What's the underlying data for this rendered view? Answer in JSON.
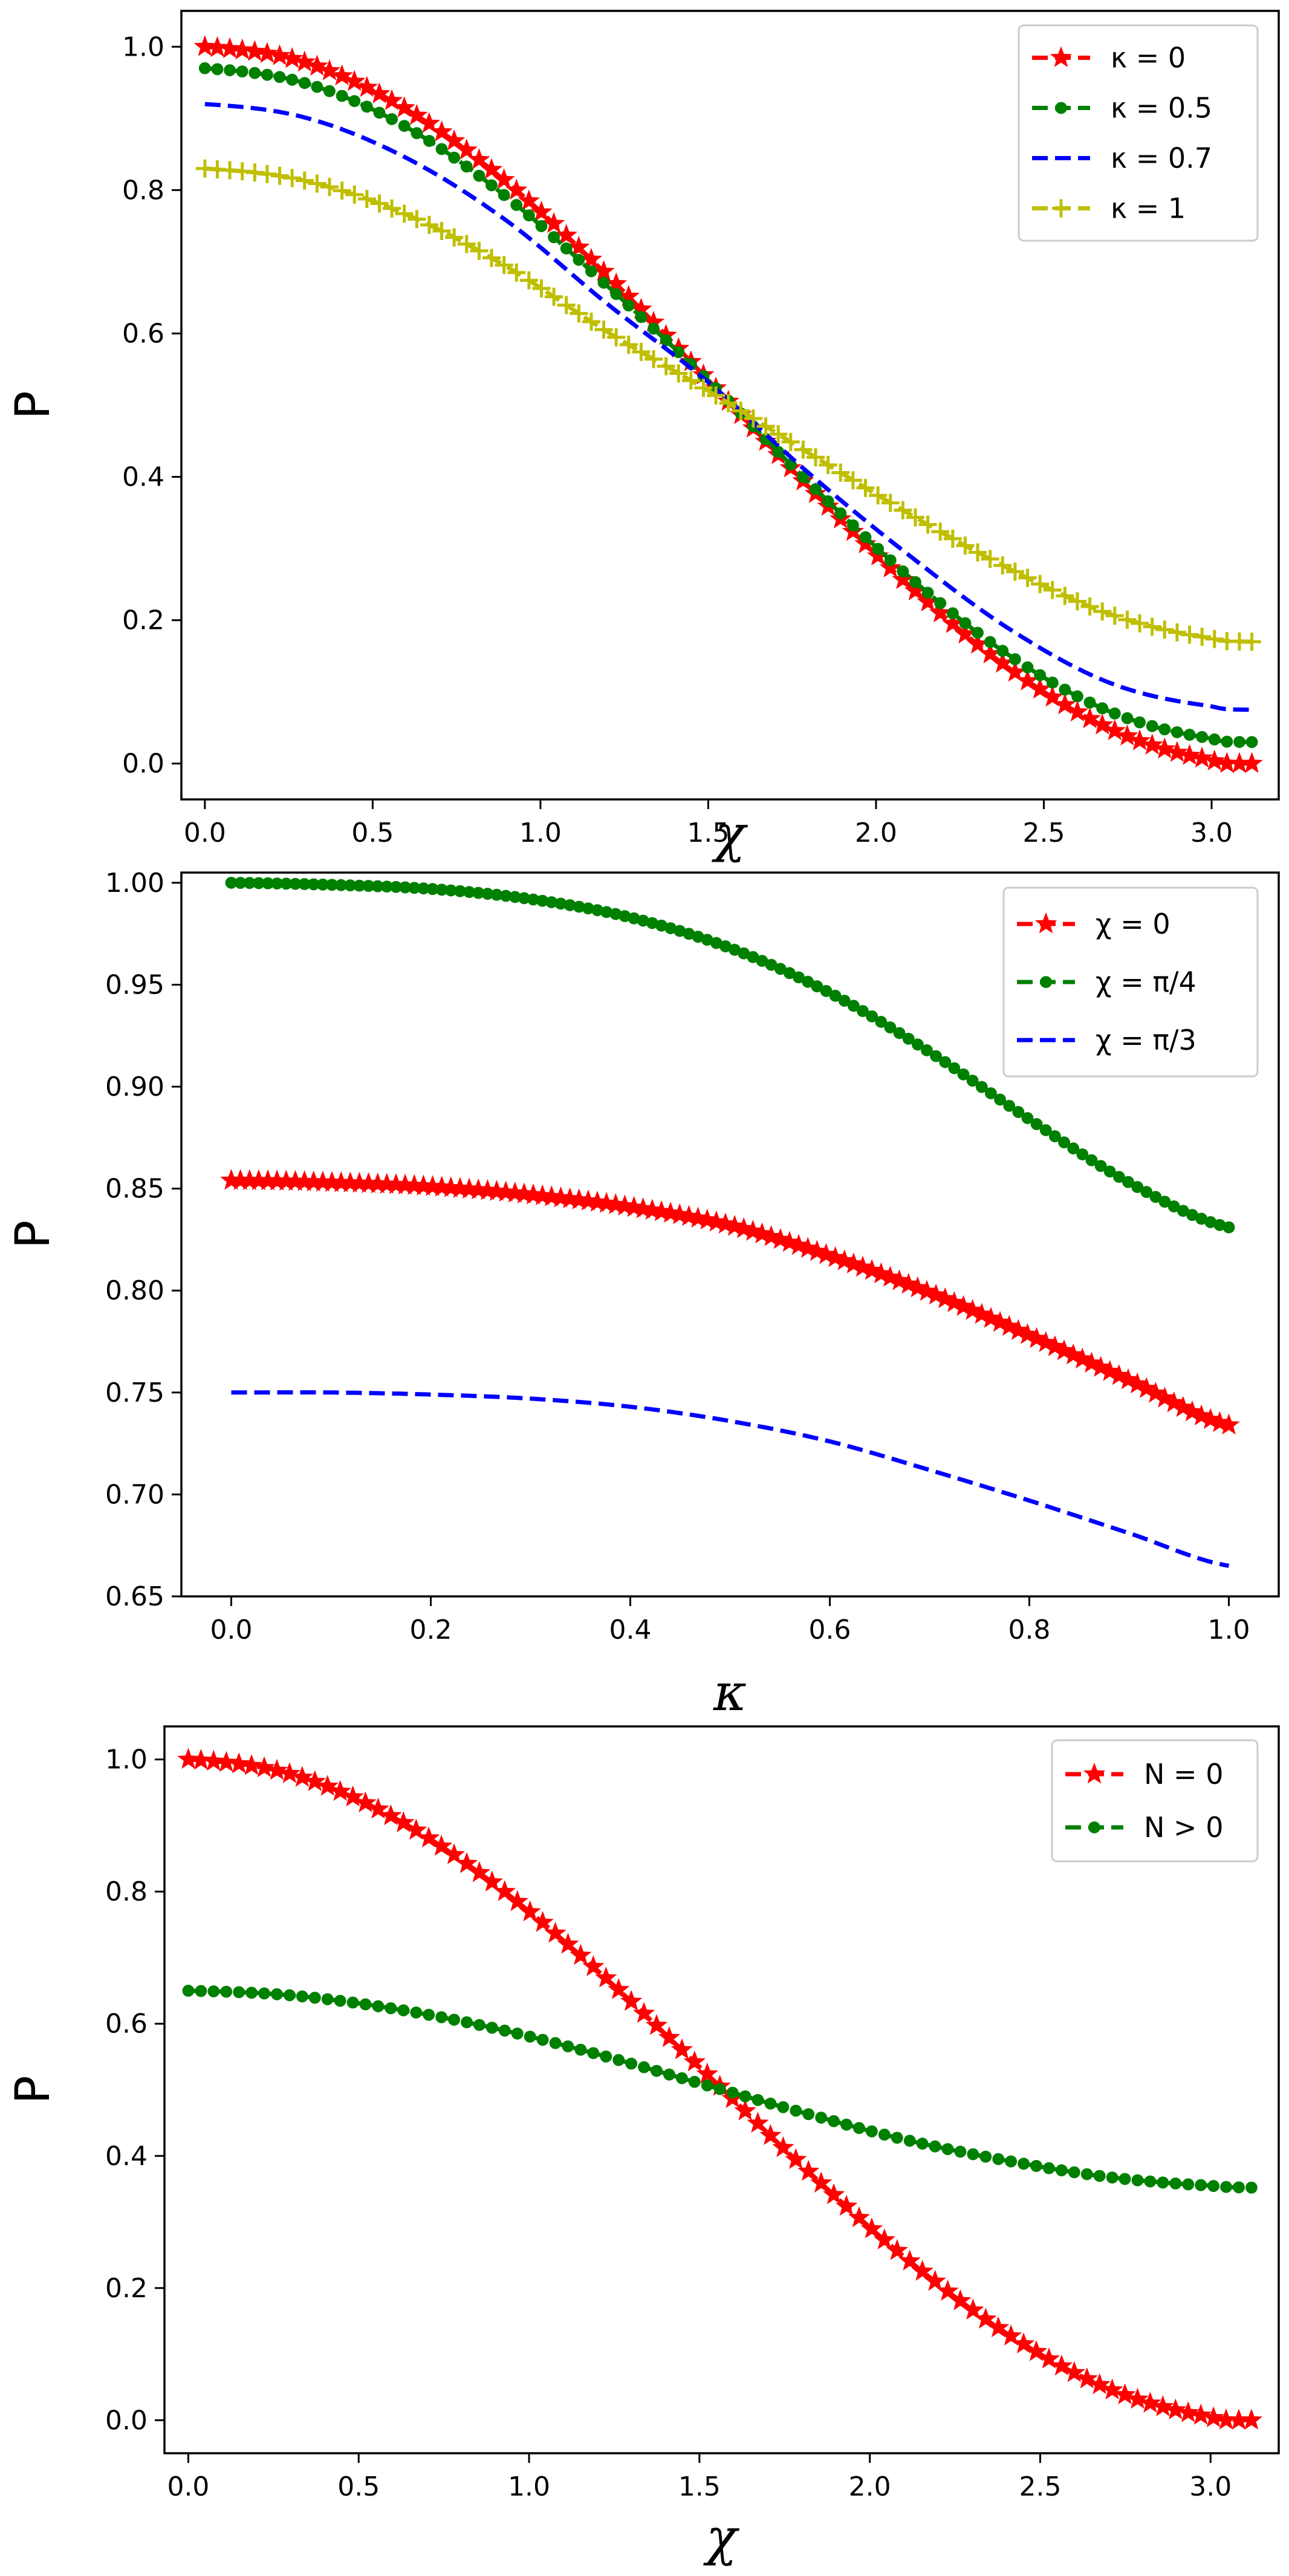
{
  "chart_data": [
    {
      "type": "line",
      "xlabel": "χ",
      "ylabel": "P",
      "xlim": [
        -0.07,
        3.2
      ],
      "ylim": [
        -0.05,
        1.05
      ],
      "xticks": [
        0.0,
        0.5,
        1.0,
        1.5,
        2.0,
        2.5,
        3.0
      ],
      "yticks": [
        0.0,
        0.2,
        0.4,
        0.6,
        0.8,
        1.0
      ],
      "xtick_labels": [
        "0.0",
        "0.5",
        "1.0",
        "1.5",
        "2.0",
        "2.5",
        "3.0"
      ],
      "ytick_labels": [
        "0.0",
        "0.2",
        "0.4",
        "0.6",
        "0.8",
        "1.0"
      ],
      "grid": false,
      "legend_position": "top-right",
      "x": [
        0.0,
        0.3,
        0.6,
        0.9,
        1.2,
        1.5,
        1.8,
        2.1,
        2.4,
        2.7,
        3.0,
        3.12
      ],
      "series": [
        {
          "name": "κ = 0",
          "color": "#ff0000",
          "marker": "star",
          "line": "dashed",
          "values": [
            1.0,
            0.978,
            0.913,
            0.811,
            0.681,
            0.535,
            0.386,
            0.248,
            0.132,
            0.048,
            0.005,
            0.0
          ]
        },
        {
          "name": "κ = 0.5",
          "color": "#008000",
          "marker": "dot",
          "line": "dashed",
          "values": [
            0.97,
            0.949,
            0.888,
            0.79,
            0.666,
            0.534,
            0.392,
            0.26,
            0.15,
            0.072,
            0.035,
            0.03
          ]
        },
        {
          "name": "κ = 0.7",
          "color": "#0000ff",
          "marker": "none",
          "line": "dashed",
          "values": [
            0.92,
            0.901,
            0.845,
            0.757,
            0.641,
            0.532,
            0.405,
            0.29,
            0.187,
            0.112,
            0.08,
            0.075
          ]
        },
        {
          "name": "κ = 1",
          "color": "#bfbf00",
          "marker": "plus",
          "line": "dashed",
          "values": [
            0.83,
            0.813,
            0.766,
            0.693,
            0.602,
            0.52,
            0.433,
            0.348,
            0.271,
            0.208,
            0.175,
            0.17
          ]
        }
      ]
    },
    {
      "type": "line",
      "xlabel": "κ",
      "ylabel": "P",
      "xlim": [
        -0.05,
        1.05
      ],
      "ylim": [
        0.65,
        1.005
      ],
      "xticks": [
        0.0,
        0.2,
        0.4,
        0.6,
        0.8,
        1.0
      ],
      "yticks": [
        0.65,
        0.7,
        0.75,
        0.8,
        0.85,
        0.9,
        0.95,
        1.0
      ],
      "xtick_labels": [
        "0.0",
        "0.2",
        "0.4",
        "0.6",
        "0.8",
        "1.0"
      ],
      "ytick_labels": [
        "0.65",
        "0.70",
        "0.75",
        "0.80",
        "0.85",
        "0.90",
        "0.95",
        "1.00"
      ],
      "grid": false,
      "legend_position": "top-right",
      "x": [
        0.0,
        0.1,
        0.2,
        0.3,
        0.4,
        0.5,
        0.6,
        0.7,
        0.8,
        0.9,
        1.0
      ],
      "series": [
        {
          "name": "χ = 0",
          "color": "#ff0000",
          "marker": "star",
          "line": "dashed",
          "values": [
            0.854,
            0.853,
            0.851,
            0.847,
            0.841,
            0.832,
            0.817,
            0.799,
            0.778,
            0.756,
            0.734
          ]
        },
        {
          "name": "χ = π/4",
          "color": "#008000",
          "marker": "dot",
          "line": "dashed",
          "values": [
            1.0,
            0.999,
            0.997,
            0.992,
            0.983,
            0.968,
            0.946,
            0.917,
            0.884,
            0.853,
            0.831
          ]
        },
        {
          "name": "χ = π/3",
          "color": "#0000ff",
          "marker": "none",
          "line": "dashed",
          "values": [
            0.75,
            0.75,
            0.749,
            0.747,
            0.743,
            0.736,
            0.726,
            0.712,
            0.697,
            0.681,
            0.665
          ]
        }
      ]
    },
    {
      "type": "line",
      "xlabel": "χ",
      "ylabel": "P",
      "xlim": [
        -0.07,
        3.2
      ],
      "ylim": [
        -0.05,
        1.05
      ],
      "xticks": [
        0.0,
        0.5,
        1.0,
        1.5,
        2.0,
        2.5,
        3.0
      ],
      "yticks": [
        0.0,
        0.2,
        0.4,
        0.6,
        0.8,
        1.0
      ],
      "xtick_labels": [
        "0.0",
        "0.5",
        "1.0",
        "1.5",
        "2.0",
        "2.5",
        "3.0"
      ],
      "ytick_labels": [
        "0.0",
        "0.2",
        "0.4",
        "0.6",
        "0.8",
        "1.0"
      ],
      "grid": false,
      "legend_position": "top-right",
      "x": [
        0.0,
        0.3,
        0.6,
        0.9,
        1.2,
        1.5,
        1.8,
        2.1,
        2.4,
        2.7,
        3.0,
        3.12
      ],
      "series": [
        {
          "name": "N = 0",
          "color": "#ff0000",
          "marker": "star",
          "line": "dashed",
          "values": [
            1.0,
            0.978,
            0.913,
            0.811,
            0.681,
            0.535,
            0.386,
            0.248,
            0.132,
            0.048,
            0.005,
            0.0
          ]
        },
        {
          "name": "N > 0",
          "color": "#008000",
          "marker": "dot",
          "line": "dashed",
          "values": [
            0.65,
            0.643,
            0.623,
            0.593,
            0.554,
            0.51,
            0.466,
            0.425,
            0.393,
            0.368,
            0.355,
            0.352
          ]
        }
      ]
    }
  ]
}
